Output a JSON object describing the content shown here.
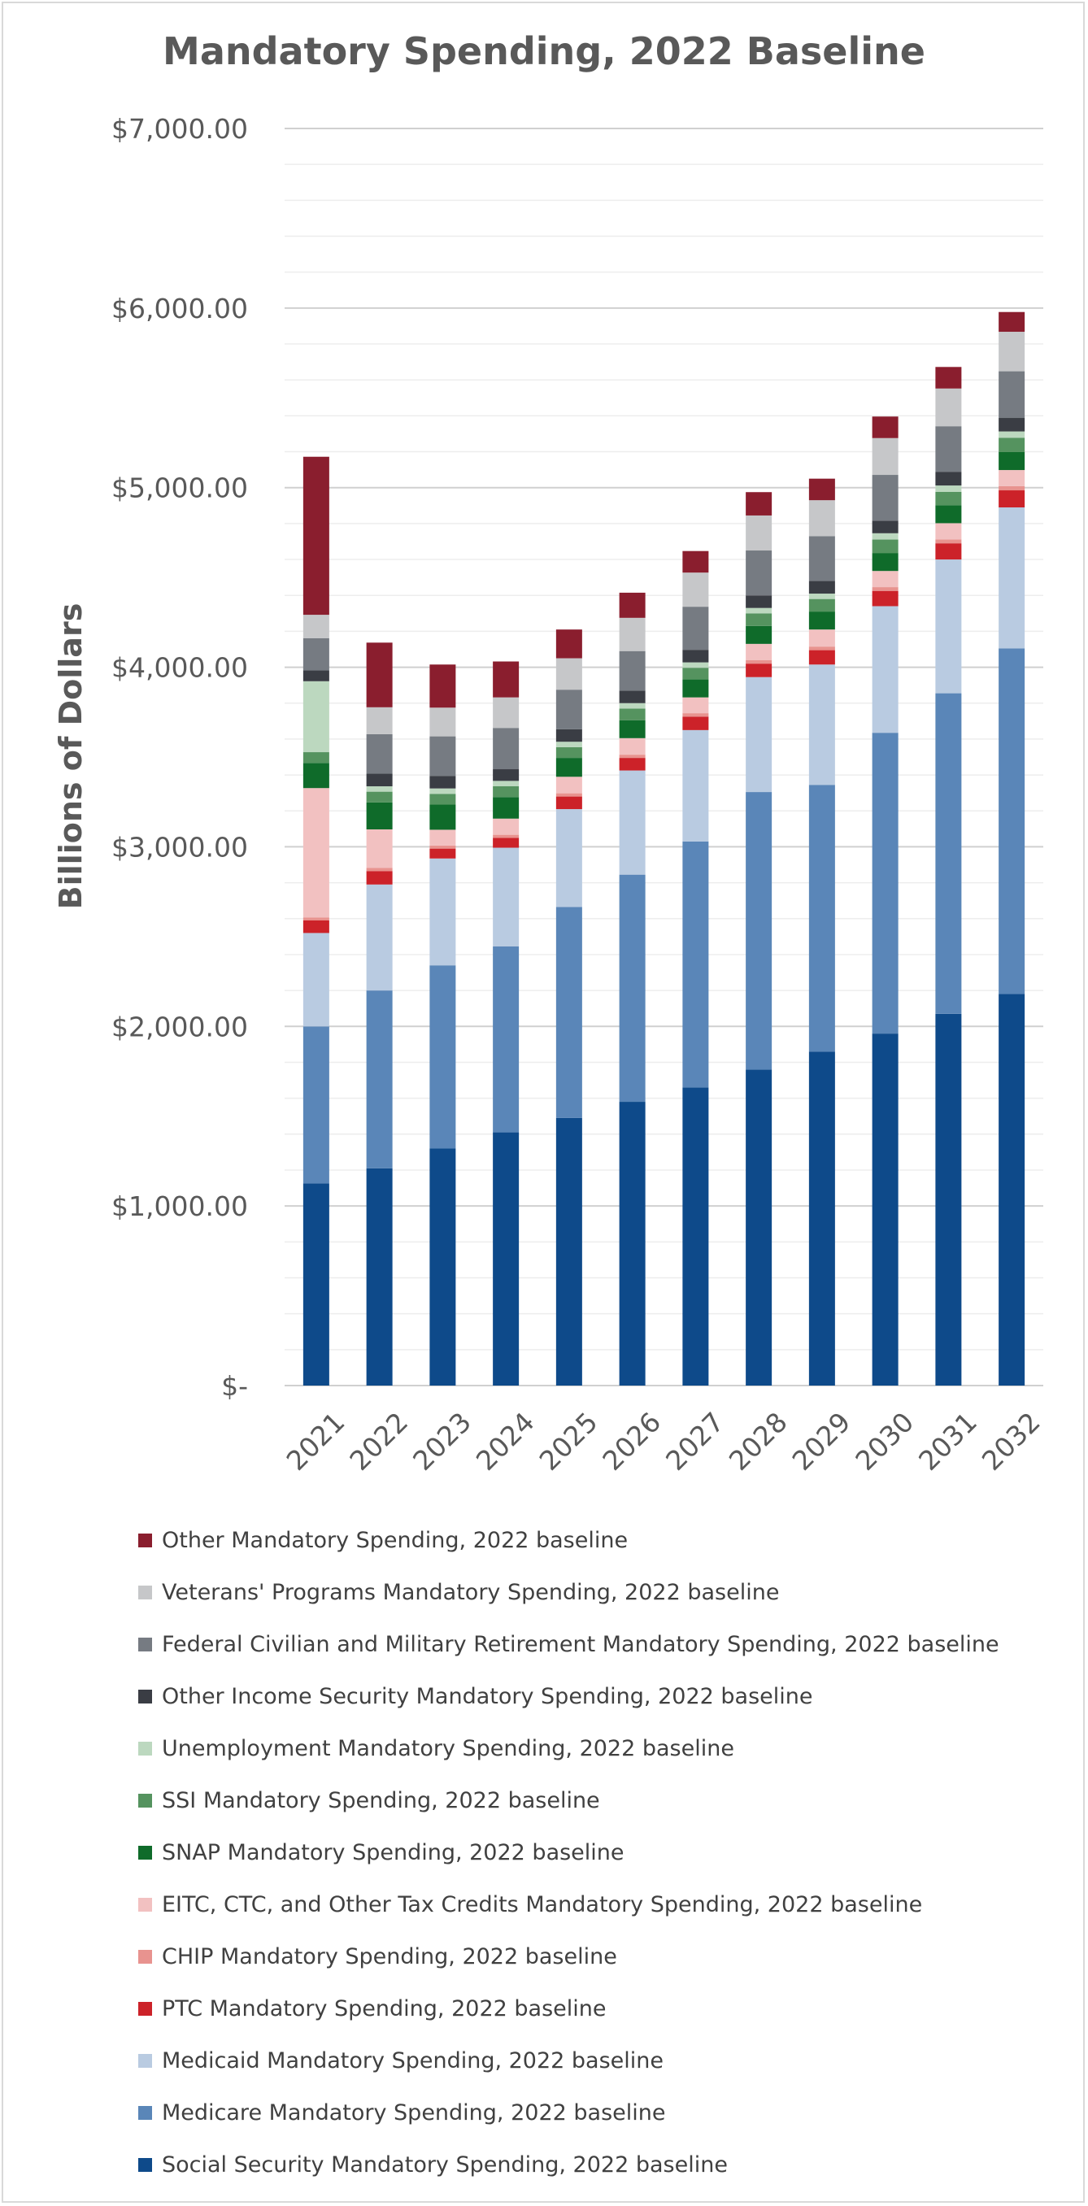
{
  "chart_data": {
    "type": "bar",
    "stacked": true,
    "title": "Mandatory Spending, 2022 Baseline",
    "xlabel": "",
    "ylabel": "Billions of Dollars",
    "ylim": [
      0,
      7000
    ],
    "y_ticks": [
      0,
      1000,
      2000,
      3000,
      4000,
      5000,
      6000,
      7000
    ],
    "y_tick_labels": [
      "$-",
      "$1,000.00",
      "$2,000.00",
      "$3,000.00",
      "$4,000.00",
      "$5,000.00",
      "$6,000.00",
      "$7,000.00"
    ],
    "grid": true,
    "legend_position": "bottom",
    "categories": [
      "2021",
      "2022",
      "2023",
      "2024",
      "2025",
      "2026",
      "2027",
      "2028",
      "2029",
      "2030",
      "2031",
      "2032"
    ],
    "series": [
      {
        "name": "Social Security Mandatory Spending, 2022 baseline",
        "color": "#0e4a8a",
        "values": [
          1125,
          1210,
          1320,
          1410,
          1490,
          1580,
          1660,
          1760,
          1860,
          1960,
          2070,
          2180
        ]
      },
      {
        "name": "Medicare Mandatory Spending, 2022 baseline",
        "color": "#5a86b8",
        "values": [
          875,
          990,
          1020,
          1035,
          1175,
          1265,
          1370,
          1545,
          1485,
          1675,
          1785,
          1925
        ]
      },
      {
        "name": "Medicaid Mandatory Spending, 2022 baseline",
        "color": "#b9cbe1",
        "values": [
          520,
          590,
          595,
          550,
          545,
          580,
          620,
          640,
          670,
          705,
          745,
          785
        ]
      },
      {
        "name": "PTC Mandatory Spending, 2022 baseline",
        "color": "#cc2229",
        "values": [
          70,
          75,
          55,
          55,
          70,
          70,
          75,
          75,
          80,
          85,
          90,
          95
        ]
      },
      {
        "name": "CHIP Mandatory Spending, 2022 baseline",
        "color": "#e8938f",
        "values": [
          17,
          17,
          17,
          17,
          18,
          18,
          19,
          20,
          20,
          21,
          22,
          23
        ]
      },
      {
        "name": "EITC, CTC, and Other Tax Credits Mandatory Spending, 2022 baseline",
        "color": "#f2c1c1",
        "values": [
          720,
          215,
          88,
          90,
          92,
          92,
          88,
          90,
          95,
          90,
          90,
          90
        ]
      },
      {
        "name": "SNAP Mandatory Spending, 2022 baseline",
        "color": "#0f6b2a",
        "values": [
          140,
          150,
          140,
          120,
          105,
          100,
          100,
          100,
          100,
          100,
          100,
          100
        ]
      },
      {
        "name": "SSI Mandatory Spending, 2022 baseline",
        "color": "#55935f",
        "values": [
          60,
          60,
          60,
          60,
          60,
          65,
          65,
          70,
          70,
          75,
          75,
          80
        ]
      },
      {
        "name": "Unemployment Mandatory Spending, 2022 baseline",
        "color": "#bcd8bf",
        "values": [
          395,
          30,
          30,
          30,
          30,
          30,
          30,
          30,
          30,
          35,
          35,
          35
        ]
      },
      {
        "name": "Other Income Security Mandatory Spending, 2022 baseline",
        "color": "#3a3d44",
        "values": [
          60,
          70,
          70,
          65,
          70,
          70,
          70,
          70,
          70,
          70,
          75,
          75
        ]
      },
      {
        "name": "Federal Civilian and Military Retirement Mandatory Spending, 2022 baseline",
        "color": "#767b82",
        "values": [
          180,
          220,
          220,
          230,
          220,
          220,
          240,
          250,
          250,
          255,
          255,
          260
        ]
      },
      {
        "name": "Veterans' Programs Mandatory Spending, 2022 baseline",
        "color": "#c6c7c9",
        "values": [
          130,
          150,
          160,
          170,
          175,
          185,
          190,
          195,
          200,
          205,
          210,
          220
        ]
      },
      {
        "name": "Other Mandatory Spending, 2022 baseline",
        "color": "#8a1e2e",
        "values": [
          880,
          360,
          240,
          200,
          160,
          140,
          120,
          130,
          120,
          120,
          120,
          110
        ]
      }
    ]
  }
}
